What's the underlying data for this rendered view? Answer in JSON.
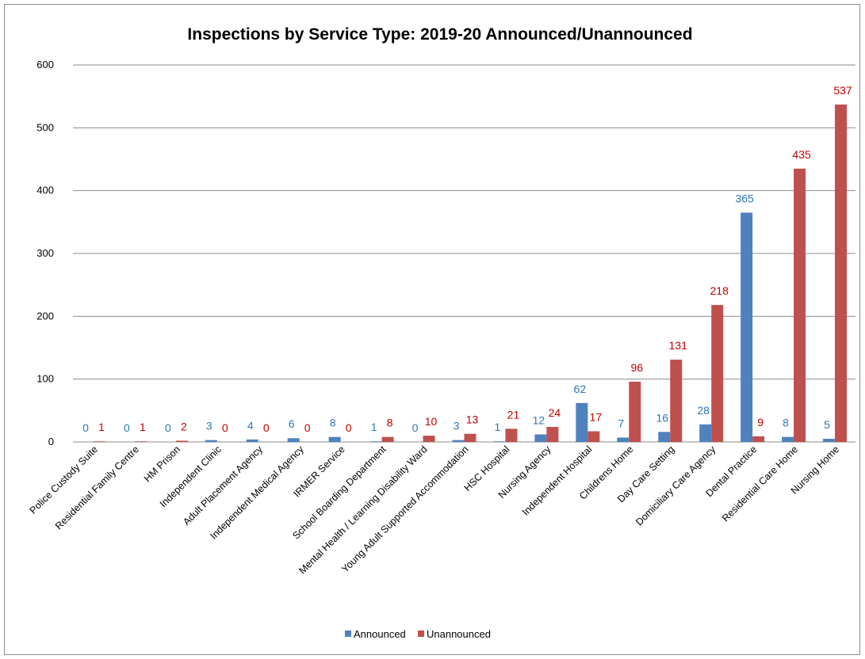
{
  "chart_data": {
    "type": "bar",
    "title": "Inspections by Service Type: 2019-20 Announced/Unannounced",
    "xlabel": "",
    "ylabel": "",
    "ylim": [
      0,
      600
    ],
    "yticks": [
      0,
      100,
      200,
      300,
      400,
      500,
      600
    ],
    "grid": true,
    "legend_position": "bottom",
    "categories": [
      "Police Custody Suite",
      "Residential Family Centre",
      "HM Prison",
      "Independent Clinic",
      "Adult Placement Agency",
      "Independent Medical Agency",
      "IRMER Service",
      "School Boarding Department",
      "Mental Health / Learning Disability Ward",
      "Young Adult Supported Accommodation",
      "HSC Hospital",
      "Nursing Agency",
      "Independent Hospital",
      "Childrens Home",
      "Day Care Setting",
      "Domiciliary Care Agency",
      "Dental Practice",
      "Residential Care Home",
      "Nursing Home"
    ],
    "series": [
      {
        "name": "Announced",
        "color": "#4f81bd",
        "label_color": "#2e75b6",
        "values": [
          0,
          0,
          0,
          3,
          4,
          6,
          8,
          1,
          0,
          3,
          1,
          12,
          62,
          7,
          16,
          28,
          365,
          8,
          5
        ]
      },
      {
        "name": "Unannounced",
        "color": "#c0504d",
        "label_color": "#c00000",
        "values": [
          1,
          1,
          2,
          0,
          0,
          0,
          0,
          8,
          10,
          13,
          21,
          24,
          17,
          96,
          131,
          218,
          9,
          435,
          537
        ]
      }
    ]
  }
}
